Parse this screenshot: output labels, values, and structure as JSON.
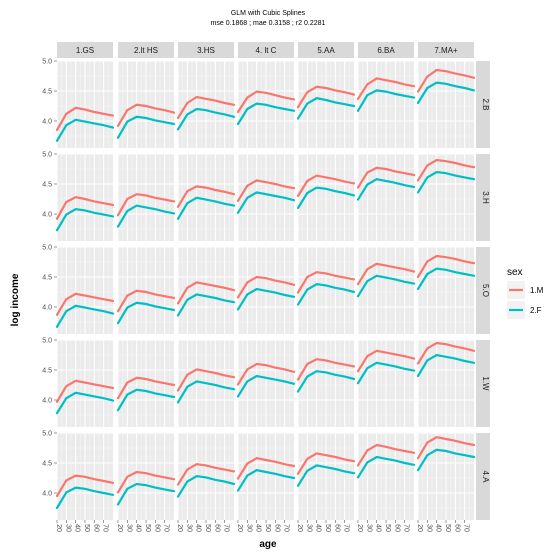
{
  "chart_data": {
    "type": "line",
    "title": "GLM with Cubic Splines",
    "subtitle": "mse 0.1868 ; mae 0.3158 ; r2 0.2281",
    "xlabel": "age",
    "ylabel": "log income",
    "xlim": [
      20,
      80
    ],
    "ylim": [
      3.55,
      5.0
    ],
    "x_ticks": [
      20,
      30,
      40,
      50,
      60,
      70
    ],
    "y_ticks": [
      "4.0",
      "4.5",
      "5.0"
    ],
    "y_tick_values": [
      4.0,
      4.5,
      5.0
    ],
    "grid": true,
    "legend_position": "right",
    "legend_title": "sex",
    "col_facets": [
      "1.GS",
      "2.lt HS",
      "3.HS",
      "4. lt C",
      "5.AA",
      "6.BA",
      "7.MA+"
    ],
    "row_facets": [
      "2.B",
      "3.H",
      "5.O",
      "1.W",
      "4.A"
    ],
    "ages": [
      20,
      30,
      40,
      50,
      60,
      70,
      80
    ],
    "series": [
      {
        "name": "1.M",
        "color": "#F8766D",
        "panels": [
          [
            [
              3.85,
              4.12,
              4.22,
              4.19,
              4.15,
              4.12,
              4.09
            ],
            [
              3.92,
              4.18,
              4.27,
              4.25,
              4.21,
              4.18,
              4.14
            ],
            [
              4.05,
              4.3,
              4.4,
              4.37,
              4.34,
              4.3,
              4.27
            ],
            [
              4.15,
              4.39,
              4.49,
              4.47,
              4.43,
              4.39,
              4.36
            ],
            [
              4.23,
              4.48,
              4.57,
              4.55,
              4.51,
              4.48,
              4.44
            ],
            [
              4.37,
              4.61,
              4.71,
              4.68,
              4.65,
              4.61,
              4.58
            ],
            [
              4.49,
              4.74,
              4.85,
              4.83,
              4.79,
              4.76,
              4.72
            ]
          ],
          [
            [
              3.92,
              4.2,
              4.28,
              4.25,
              4.21,
              4.18,
              4.15
            ],
            [
              3.98,
              4.25,
              4.33,
              4.31,
              4.27,
              4.24,
              4.21
            ],
            [
              4.12,
              4.38,
              4.46,
              4.44,
              4.4,
              4.37,
              4.33
            ],
            [
              4.22,
              4.47,
              4.56,
              4.53,
              4.5,
              4.46,
              4.43
            ],
            [
              4.3,
              4.55,
              4.64,
              4.61,
              4.58,
              4.54,
              4.51
            ],
            [
              4.44,
              4.69,
              4.77,
              4.75,
              4.71,
              4.68,
              4.65
            ],
            [
              4.56,
              4.81,
              4.9,
              4.88,
              4.85,
              4.81,
              4.78
            ]
          ],
          [
            [
              3.87,
              4.13,
              4.22,
              4.19,
              4.16,
              4.13,
              4.1
            ],
            [
              3.93,
              4.19,
              4.27,
              4.25,
              4.21,
              4.18,
              4.15
            ],
            [
              4.06,
              4.32,
              4.41,
              4.38,
              4.35,
              4.32,
              4.28
            ],
            [
              4.16,
              4.41,
              4.5,
              4.48,
              4.44,
              4.41,
              4.37
            ],
            [
              4.24,
              4.5,
              4.58,
              4.56,
              4.52,
              4.49,
              4.46
            ],
            [
              4.38,
              4.63,
              4.72,
              4.69,
              4.66,
              4.63,
              4.59
            ],
            [
              4.5,
              4.76,
              4.85,
              4.83,
              4.8,
              4.76,
              4.73
            ]
          ],
          [
            [
              3.97,
              4.23,
              4.32,
              4.29,
              4.26,
              4.23,
              4.2
            ],
            [
              4.03,
              4.29,
              4.37,
              4.35,
              4.31,
              4.28,
              4.25
            ],
            [
              4.16,
              4.42,
              4.51,
              4.48,
              4.45,
              4.41,
              4.38
            ],
            [
              4.26,
              4.51,
              4.6,
              4.58,
              4.54,
              4.51,
              4.47
            ],
            [
              4.34,
              4.6,
              4.68,
              4.66,
              4.62,
              4.59,
              4.56
            ],
            [
              4.48,
              4.73,
              4.82,
              4.79,
              4.76,
              4.73,
              4.69
            ],
            [
              4.61,
              4.86,
              4.95,
              4.93,
              4.89,
              4.86,
              4.82
            ]
          ],
          [
            [
              3.95,
              4.21,
              4.29,
              4.27,
              4.23,
              4.2,
              4.17
            ],
            [
              4.01,
              4.27,
              4.35,
              4.33,
              4.29,
              4.26,
              4.23
            ],
            [
              4.14,
              4.39,
              4.48,
              4.46,
              4.42,
              4.39,
              4.36
            ],
            [
              4.24,
              4.49,
              4.58,
              4.55,
              4.52,
              4.48,
              4.45
            ],
            [
              4.32,
              4.57,
              4.66,
              4.63,
              4.6,
              4.56,
              4.53
            ],
            [
              4.46,
              4.71,
              4.8,
              4.77,
              4.73,
              4.7,
              4.67
            ],
            [
              4.58,
              4.84,
              4.93,
              4.9,
              4.87,
              4.83,
              4.8
            ]
          ]
        ]
      },
      {
        "name": "2.F",
        "color": "#00BFC4",
        "panels": [
          [
            [
              3.67,
              3.93,
              4.02,
              3.99,
              3.96,
              3.93,
              3.89
            ],
            [
              3.72,
              3.99,
              4.07,
              4.05,
              4.01,
              3.98,
              3.95
            ],
            [
              3.86,
              4.11,
              4.2,
              4.18,
              4.14,
              4.11,
              4.07
            ],
            [
              3.95,
              4.2,
              4.29,
              4.27,
              4.23,
              4.2,
              4.17
            ],
            [
              4.04,
              4.29,
              4.38,
              4.35,
              4.31,
              4.28,
              4.25
            ],
            [
              4.17,
              4.43,
              4.51,
              4.49,
              4.45,
              4.42,
              4.39
            ],
            [
              4.3,
              4.55,
              4.64,
              4.62,
              4.58,
              4.55,
              4.51
            ]
          ],
          [
            [
              3.73,
              3.99,
              4.08,
              4.06,
              4.02,
              3.99,
              3.96
            ],
            [
              3.79,
              4.05,
              4.14,
              4.11,
              4.08,
              4.04,
              4.01
            ],
            [
              3.92,
              4.18,
              4.27,
              4.24,
              4.21,
              4.17,
              4.14
            ],
            [
              4.02,
              4.27,
              4.36,
              4.33,
              4.3,
              4.27,
              4.23
            ],
            [
              4.1,
              4.35,
              4.44,
              4.42,
              4.38,
              4.35,
              4.31
            ],
            [
              4.24,
              4.49,
              4.58,
              4.55,
              4.52,
              4.48,
              4.45
            ],
            [
              4.36,
              4.61,
              4.7,
              4.68,
              4.64,
              4.61,
              4.58
            ]
          ],
          [
            [
              3.67,
              3.93,
              4.02,
              3.99,
              3.96,
              3.93,
              3.89
            ],
            [
              3.73,
              3.99,
              4.07,
              4.05,
              4.01,
              3.98,
              3.95
            ],
            [
              3.86,
              4.12,
              4.21,
              4.18,
              4.15,
              4.11,
              4.08
            ],
            [
              3.96,
              4.21,
              4.3,
              4.27,
              4.24,
              4.2,
              4.17
            ],
            [
              4.04,
              4.29,
              4.38,
              4.36,
              4.32,
              4.29,
              4.25
            ],
            [
              4.18,
              4.43,
              4.52,
              4.49,
              4.46,
              4.42,
              4.39
            ],
            [
              4.3,
              4.55,
              4.64,
              4.62,
              4.58,
              4.55,
              4.52
            ]
          ],
          [
            [
              3.78,
              4.03,
              4.12,
              4.09,
              4.06,
              4.03,
              3.99
            ],
            [
              3.83,
              4.09,
              4.17,
              4.15,
              4.11,
              4.08,
              4.05
            ],
            [
              3.96,
              4.22,
              4.31,
              4.28,
              4.25,
              4.21,
              4.18
            ],
            [
              4.06,
              4.31,
              4.4,
              4.37,
              4.34,
              4.31,
              4.27
            ],
            [
              4.14,
              4.39,
              4.48,
              4.46,
              4.42,
              4.39,
              4.35
            ],
            [
              4.28,
              4.53,
              4.62,
              4.59,
              4.56,
              4.52,
              4.49
            ],
            [
              4.4,
              4.66,
              4.75,
              4.72,
              4.69,
              4.65,
              4.62
            ]
          ],
          [
            [
              3.75,
              4.01,
              4.09,
              4.07,
              4.03,
              4.0,
              3.97
            ],
            [
              3.81,
              4.07,
              4.15,
              4.13,
              4.09,
              4.06,
              4.03
            ],
            [
              3.94,
              4.19,
              4.28,
              4.26,
              4.22,
              4.19,
              4.15
            ],
            [
              4.04,
              4.29,
              4.38,
              4.35,
              4.32,
              4.28,
              4.25
            ],
            [
              4.12,
              4.37,
              4.46,
              4.43,
              4.4,
              4.36,
              4.33
            ],
            [
              4.26,
              4.51,
              4.6,
              4.57,
              4.54,
              4.5,
              4.47
            ],
            [
              4.38,
              4.63,
              4.72,
              4.7,
              4.66,
              4.63,
              4.6
            ]
          ]
        ]
      }
    ]
  }
}
